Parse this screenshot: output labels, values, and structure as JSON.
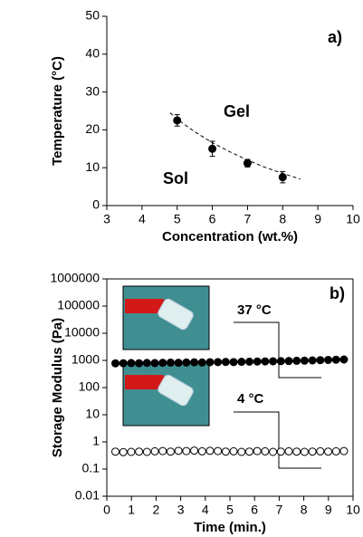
{
  "chart_data": [
    {
      "type": "scatter",
      "x_label": "Concentration (wt.%)",
      "y_label": "Temperature (°C)",
      "xlim": [
        3,
        10
      ],
      "xticks": [
        3,
        4,
        5,
        6,
        7,
        8,
        9,
        10
      ],
      "ylim": [
        0,
        50
      ],
      "yticks": [
        0,
        10,
        20,
        30,
        40,
        50
      ],
      "annotations": [
        "Gel",
        "Sol",
        "a)"
      ],
      "x": [
        5,
        6,
        7,
        8
      ],
      "series": [
        {
          "color": "#000000",
          "marker": "filled",
          "values": [
            22.5,
            15,
            11.2,
            7.5
          ],
          "errors": [
            1.5,
            2,
            1,
            1.5
          ]
        }
      ],
      "fit": {
        "x": [
          4.8,
          5,
          5.5,
          6,
          6.5,
          7,
          7.5,
          8,
          8.5
        ],
        "values": [
          24.5,
          22.8,
          19.5,
          16.6,
          14.2,
          12.0,
          10.1,
          8.5,
          7.0
        ]
      }
    },
    {
      "type": "scatter",
      "x_label": "Time (min.)",
      "y_label": "Storage Modulus (Pa)",
      "log_y": true,
      "frame": true,
      "xlim": [
        0,
        10
      ],
      "xticks": [
        0,
        1,
        2,
        3,
        4,
        5,
        6,
        7,
        8,
        9,
        10
      ],
      "ylim": [
        0.01,
        1000000
      ],
      "yticks": [
        0.01,
        0.1,
        1,
        10,
        100,
        1000,
        10000,
        100000,
        1000000
      ],
      "annotations": [
        "37 °C",
        "4 °C",
        "b)"
      ],
      "x": [
        0.35,
        0.67,
        0.99,
        1.31,
        1.63,
        1.95,
        2.27,
        2.59,
        2.91,
        3.23,
        3.55,
        3.87,
        4.19,
        4.51,
        4.83,
        5.15,
        5.47,
        5.79,
        6.11,
        6.43,
        6.75,
        7.07,
        7.39,
        7.71,
        8.03,
        8.35,
        8.67,
        8.99,
        9.31,
        9.63
      ],
      "series": [
        {
          "color": "#000000",
          "marker": "filled",
          "values": [
            780,
            790,
            800,
            790,
            810,
            800,
            820,
            830,
            820,
            840,
            850,
            840,
            860,
            870,
            880,
            870,
            890,
            900,
            910,
            920,
            930,
            940,
            950,
            970,
            980,
            1000,
            1020,
            1040,
            1060,
            1080
          ]
        },
        {
          "color": "#000000",
          "marker": "open",
          "values": [
            0.44,
            0.42,
            0.43,
            0.44,
            0.43,
            0.45,
            0.46,
            0.44,
            0.47,
            0.46,
            0.48,
            0.45,
            0.47,
            0.46,
            0.44,
            0.45,
            0.43,
            0.44,
            0.46,
            0.45,
            0.43,
            0.44,
            0.45,
            0.44,
            0.43,
            0.44,
            0.45,
            0.44,
            0.45,
            0.46
          ]
        }
      ]
    }
  ]
}
